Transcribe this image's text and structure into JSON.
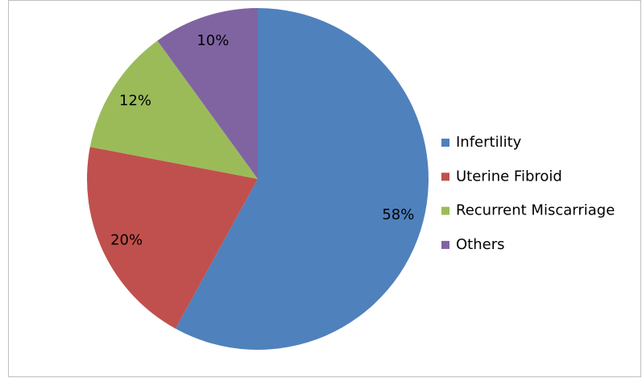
{
  "chart_data": {
    "type": "pie",
    "categories": [
      "Infertility",
      "Uterine Fibroid",
      "Recurrent Miscarriage",
      "Others"
    ],
    "values": [
      58,
      20,
      12,
      10
    ],
    "value_labels": [
      "58%",
      "20%",
      "12%",
      "10%"
    ],
    "colors": [
      "#4f81bd",
      "#c0504d",
      "#9bbb59",
      "#8064a2"
    ],
    "legend": "right"
  }
}
